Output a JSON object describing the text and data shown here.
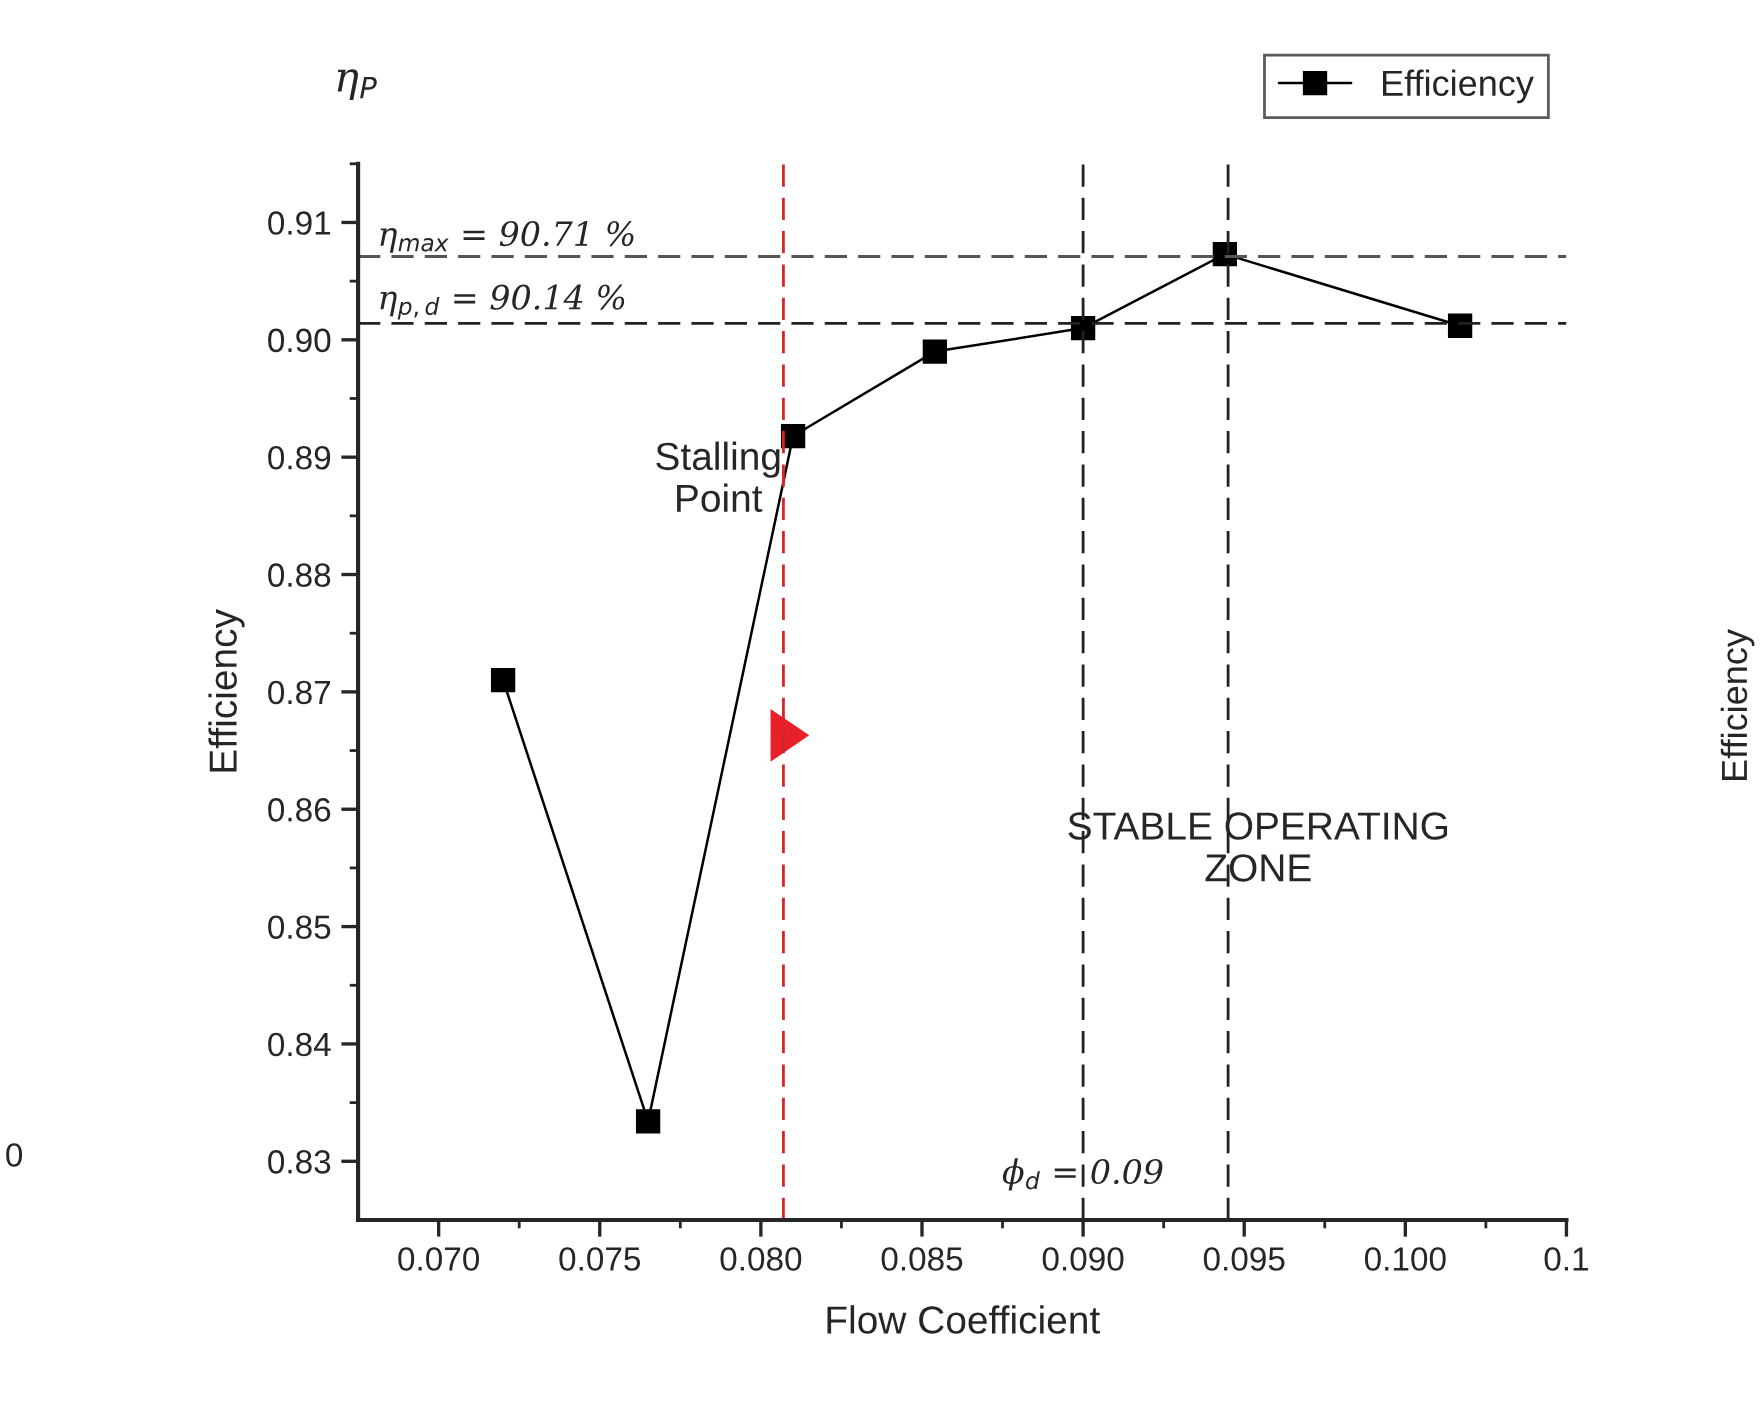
{
  "chart_data": {
    "type": "line",
    "xlabel": "Flow Coefficient",
    "ylabel": "Efficiency",
    "x": [
      0.072,
      0.0765,
      0.081,
      0.0854,
      0.09,
      0.0944,
      0.1017
    ],
    "series": [
      {
        "name": "Efficiency",
        "color": "#000000",
        "values": [
          0.871,
          0.8334,
          0.8918,
          0.899,
          0.901,
          0.9073,
          0.9012
        ]
      }
    ],
    "xlim": [
      0.0675,
      0.105
    ],
    "xticks": [
      {
        "value": 0.07,
        "label": "0.070"
      },
      0.075,
      {
        "value": 0.08,
        "label": "0.080"
      },
      0.085,
      {
        "value": 0.09,
        "label": "0.090"
      },
      0.095,
      {
        "value": 0.1,
        "label": "0.100"
      },
      {
        "value": 0.105,
        "label": "0.1"
      }
    ],
    "ylim": [
      0.825,
      0.915
    ],
    "yticks": [
      0.83,
      0.84,
      0.85,
      0.86,
      0.87,
      0.88,
      0.89,
      {
        "value": 0.9,
        "label": "0.90"
      },
      0.91
    ],
    "marker": "square",
    "line_style": "solid",
    "legend": "top right",
    "grid": false,
    "ref_lines": [
      {
        "axis": "y",
        "value": 0.9071,
        "label": "η$_{max}$ = 90.71 %",
        "color": "#555555",
        "line_style": "dashed"
      },
      {
        "axis": "y",
        "value": 0.9014,
        "label": "η$_{p,d}$ = 90.14 %",
        "color": "#222222",
        "line_style": "dashed"
      },
      {
        "axis": "x",
        "value": 0.0807,
        "label": null,
        "color": "#d62728",
        "line_style": "dashed"
      },
      {
        "axis": "x",
        "value": 0.09,
        "label": "ϕ$_{d}$ = 0.09",
        "color": "#222222",
        "line_style": "dashed"
      },
      {
        "axis": "x",
        "value": 0.0945,
        "label": null,
        "color": "#222222",
        "line_style": "dashed"
      }
    ],
    "annotations": [
      {
        "text": "Stalling\nPoint",
        "x": 0.081,
        "y": 0.8918
      },
      "STABLE OPERATING\nZONE",
      "η$_{P}$",
      "0",
      "Efficiency"
    ]
  }
}
